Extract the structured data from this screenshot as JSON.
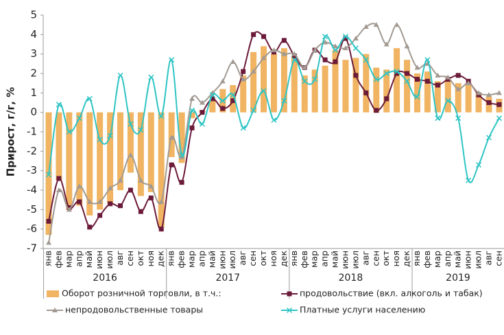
{
  "chart_data": {
    "type": "bar_line",
    "y_label": "Прирост, г/г, %",
    "categories": [
      "янв",
      "фев",
      "мар",
      "апр",
      "май",
      "июн",
      "июл",
      "авг",
      "сен",
      "окт",
      "ноя",
      "дек",
      "янв",
      "фев",
      "мар",
      "апр",
      "май",
      "июн",
      "июл",
      "авг",
      "сен",
      "окт",
      "ноя",
      "дек",
      "янв",
      "фев",
      "мар",
      "апр",
      "май",
      "июн",
      "июл",
      "авг",
      "сен",
      "окт",
      "ноя",
      "дек",
      "янв",
      "фев",
      "мар",
      "апр",
      "май",
      "июн",
      "июл",
      "авг",
      "сен"
    ],
    "years": [
      "2016",
      "2017",
      "2018",
      "2019"
    ],
    "ylim": [
      -7,
      5
    ],
    "yticks": [
      -7,
      -6,
      -5,
      -4,
      -3,
      -2,
      -1,
      0,
      1,
      2,
      3,
      4,
      5
    ],
    "series": [
      {
        "name": "Оборот розничной торговли, в т.ч.:",
        "kind": "bar",
        "color": "#f0b462",
        "values": [
          -6.3,
          -3.5,
          -5.0,
          -4.8,
          -5.3,
          -5.0,
          -4.7,
          -4.0,
          -3.1,
          -4.3,
          -4.1,
          -5.9,
          -2.3,
          -2.6,
          -0.3,
          0.1,
          0.7,
          1.2,
          1.4,
          1.9,
          3.1,
          3.4,
          3.0,
          3.3,
          2.9,
          1.9,
          2.2,
          2.4,
          3.2,
          2.7,
          2.8,
          3.0,
          2.3,
          2.2,
          3.3,
          2.7,
          2.0,
          2.1,
          1.6,
          1.7,
          1.5,
          1.5,
          1.0,
          0.8,
          0.7
        ]
      },
      {
        "name": "продовольствие (вкл. алкоголь и табак)",
        "kind": "line",
        "marker": "square",
        "color": "#6b1a3a",
        "values": [
          -5.6,
          -3.4,
          -4.9,
          -4.6,
          -5.9,
          -5.3,
          -4.7,
          -4.8,
          -4.0,
          -5.1,
          -4.4,
          -6.0,
          -2.7,
          -3.6,
          -0.8,
          0.0,
          0.7,
          0.2,
          0.6,
          2.1,
          4.0,
          3.9,
          3.1,
          3.7,
          2.9,
          2.3,
          3.2,
          2.7,
          2.6,
          3.8,
          1.9,
          1.0,
          0.1,
          0.7,
          2.0,
          2.0,
          1.7,
          1.6,
          1.4,
          1.7,
          1.9,
          1.6,
          0.9,
          0.5,
          0.4
        ]
      },
      {
        "name": "непродовольственные товары",
        "kind": "line",
        "marker": "triangle",
        "color": "#a29a92",
        "values": [
          -6.7,
          -4.0,
          -5.0,
          -3.8,
          -4.6,
          -4.6,
          -3.9,
          -3.5,
          -2.2,
          -3.5,
          -3.8,
          -4.6,
          -1.3,
          -2.3,
          0.7,
          0.5,
          1.0,
          1.6,
          2.6,
          1.7,
          2.1,
          2.8,
          3.2,
          3.0,
          3.0,
          2.3,
          3.2,
          3.6,
          3.4,
          3.3,
          3.8,
          4.4,
          4.5,
          3.5,
          4.5,
          3.4,
          2.3,
          2.5,
          1.9,
          1.8,
          1.2,
          1.5,
          1.0,
          0.9,
          1.0
        ]
      },
      {
        "name": "Платные услуги населению",
        "kind": "line",
        "marker": "cross",
        "color": "#2ec4c4",
        "values": [
          -3.2,
          0.4,
          -1.0,
          -0.3,
          0.7,
          -1.4,
          -1.2,
          1.9,
          -0.6,
          -0.9,
          1.8,
          -0.2,
          2.7,
          -2.2,
          0.1,
          -0.6,
          0.9,
          0.6,
          0.9,
          -0.8,
          0.1,
          1.1,
          -0.4,
          0.6,
          2.7,
          1.6,
          1.7,
          3.9,
          3.2,
          3.9,
          3.3,
          2.7,
          1.7,
          2.0,
          2.1,
          1.6,
          0.8,
          2.7,
          -0.3,
          0.6,
          -0.3,
          -3.5,
          -2.7,
          -1.3,
          -0.3
        ]
      }
    ]
  }
}
